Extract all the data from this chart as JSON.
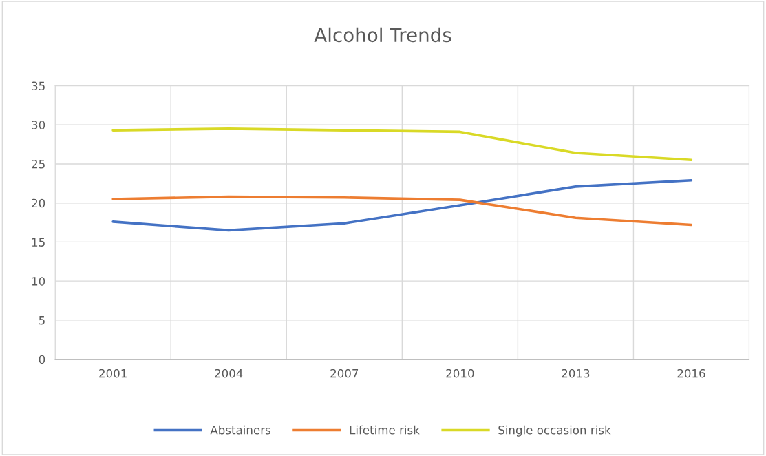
{
  "chart_data": {
    "type": "line",
    "title": "Alcohol Trends",
    "categories": [
      "2001",
      "2004",
      "2007",
      "2010",
      "2013",
      "2016"
    ],
    "series": [
      {
        "name": "Abstainers",
        "color": "#4472c4",
        "values": [
          17.6,
          16.5,
          17.4,
          19.7,
          22.1,
          22.9
        ]
      },
      {
        "name": "Lifetime risk",
        "color": "#ed7d31",
        "values": [
          20.5,
          20.8,
          20.7,
          20.4,
          18.1,
          17.2
        ]
      },
      {
        "name": "Single occasion risk",
        "color": "#d9d926",
        "values": [
          29.3,
          29.5,
          29.3,
          29.1,
          26.4,
          25.5
        ]
      }
    ],
    "ylim": [
      0,
      35
    ],
    "yticks": [
      0,
      5,
      10,
      15,
      20,
      25,
      30,
      35
    ],
    "grid": true,
    "legend": "bottom",
    "marker": "none",
    "line_style": "solid"
  }
}
